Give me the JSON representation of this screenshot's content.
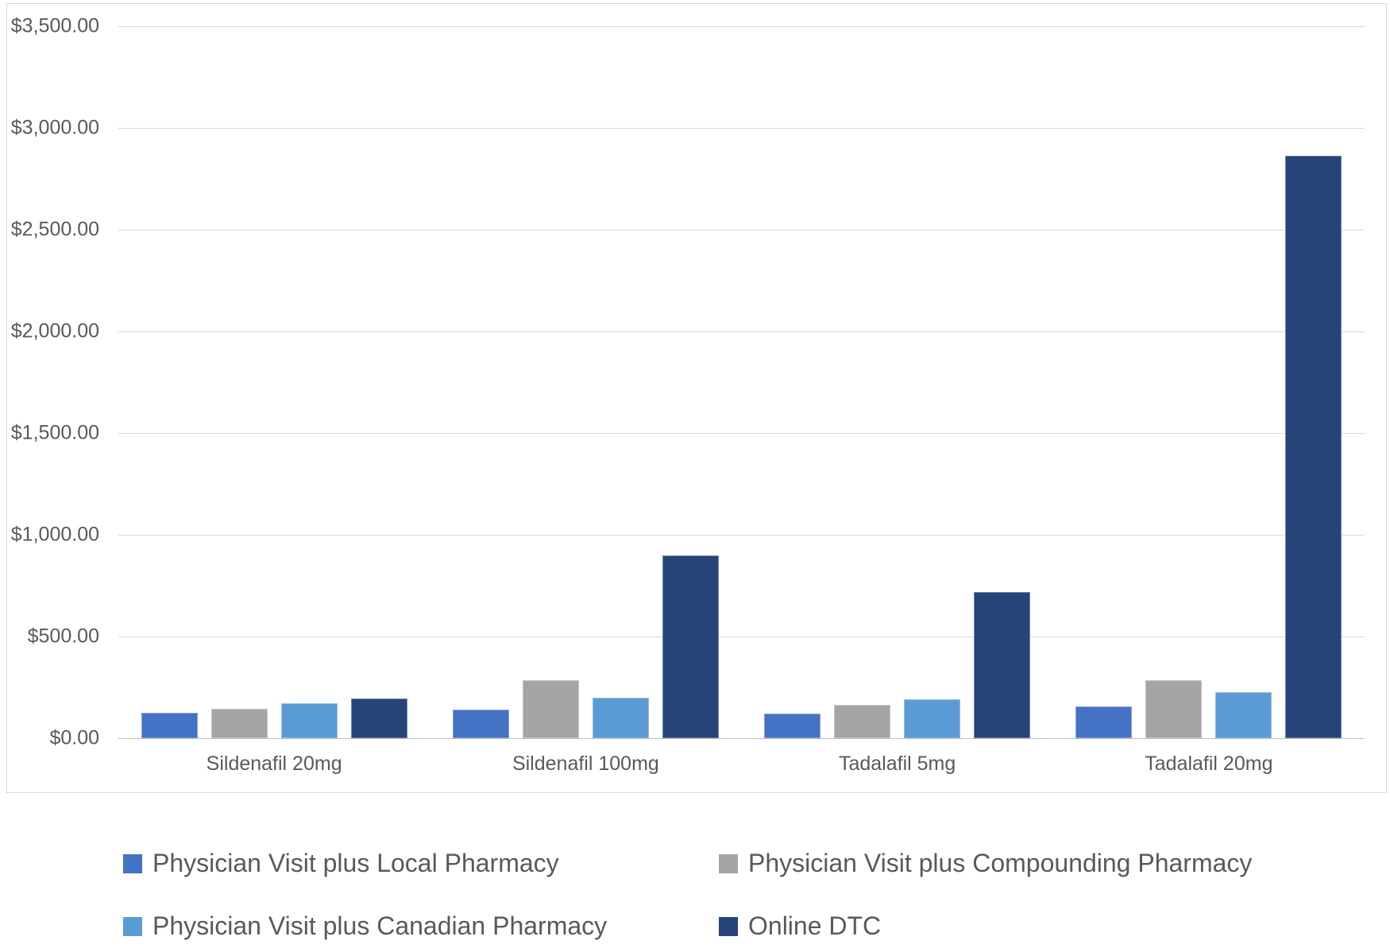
{
  "chart_data": {
    "type": "bar",
    "title": "",
    "categories": [
      "Sildenafil 20mg",
      "Sildenafil 100mg",
      "Tadalafil 5mg",
      "Tadalafil 20mg"
    ],
    "series": [
      {
        "name": "Physician Visit plus Local Pharmacy",
        "color": "#4472C4",
        "values": [
          125,
          140,
          120,
          155
        ]
      },
      {
        "name": "Physician Visit plus Compounding Pharmacy",
        "color": "#A5A5A5",
        "values": [
          145,
          285,
          165,
          285
        ]
      },
      {
        "name": "Physician Visit plus Canadian Pharmacy",
        "color": "#5B9BD5",
        "values": [
          170,
          200,
          190,
          225
        ]
      },
      {
        "name": "Online DTC",
        "color": "#264478",
        "values": [
          195,
          900,
          720,
          2865
        ]
      }
    ],
    "xlabel": "",
    "ylabel": "",
    "ylim": [
      0,
      3500
    ],
    "ytick_step": 500,
    "ytick_labels": [
      "$0.00",
      "$500.00",
      "$1,000.00",
      "$1,500.00",
      "$2,000.00",
      "$2,500.00",
      "$3,000.00",
      "$3,500.00"
    ],
    "grid": true,
    "legend_position": "bottom"
  },
  "colors": {
    "gridline": "#D9D9D9",
    "axis_line": "#BFBFBF",
    "tick_text": "#595959",
    "legend_text": "#595959",
    "chart_border": "#D9D9D9",
    "background": "#FFFFFF"
  }
}
